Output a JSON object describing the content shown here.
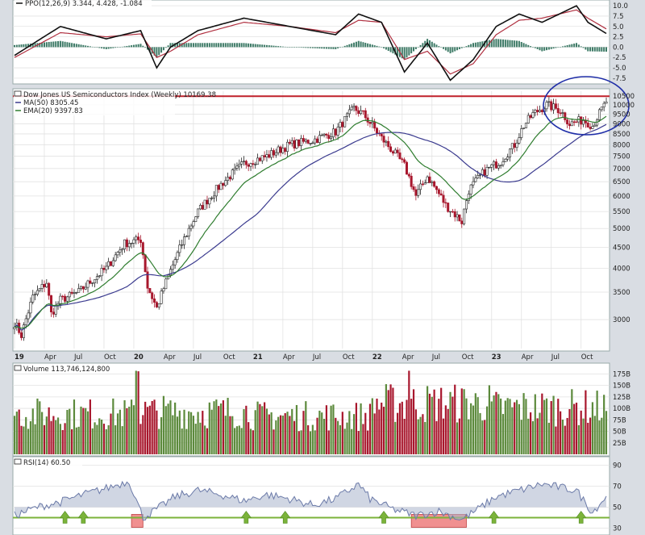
{
  "colors": {
    "up": "#5c8a3c",
    "down": "#a8172d",
    "ma50": "#3b3b8f",
    "ema20": "#2f7d2f",
    "ppo_line": "#111111",
    "ppo_signal": "#b03040",
    "ppo_hist": "#3d7a66",
    "rsi_line": "#6b7aa8",
    "rsi_green": "#7bb33a",
    "rsi_red": "#f09090",
    "circle": "#1f2ea8",
    "resistance": "#c0202a",
    "panel_bg": "#ffffff",
    "grid": "#e2e2e2"
  },
  "chart_data": [
    {
      "type": "line",
      "panel": "ppo",
      "legend_text": "PPO(12,26,9) 3.344, 4.428, -1.084",
      "y_ticks": [
        "10.0",
        "7.5",
        "5.0",
        "2.5",
        "0.0",
        "-2.5",
        "-5.0",
        "-7.5"
      ],
      "ylim": [
        -8.5,
        11
      ],
      "x_weeks": [
        0,
        20,
        40,
        55,
        62,
        68,
        80,
        100,
        120,
        140,
        150,
        160,
        170,
        180,
        190,
        200,
        210,
        220,
        230,
        245,
        250,
        258
      ],
      "series": [
        {
          "name": "PPO",
          "values": [
            -2,
            5,
            2,
            4,
            -5,
            0,
            4,
            7,
            5,
            3,
            8,
            6,
            -6,
            1,
            -8,
            -3,
            5,
            8,
            6,
            10,
            6,
            3.3
          ]
        },
        {
          "name": "Signal",
          "values": [
            -2.5,
            3.5,
            2.5,
            3.2,
            -2.5,
            -1,
            3,
            6,
            5,
            3.5,
            6.5,
            6,
            -3,
            -1,
            -6.5,
            -4,
            3,
            6.5,
            7,
            9,
            7,
            4.4
          ]
        }
      ]
    },
    {
      "type": "candlestick",
      "panel": "price",
      "title": "Dow Jones US Semiconductors Index (Weekly) 10169.38",
      "legend": [
        "MA(50) 8305.45",
        "EMA(20) 9397.83"
      ],
      "y_ticks": [
        10500,
        10000,
        9500,
        9000,
        8500,
        8000,
        7500,
        7000,
        6500,
        6000,
        5500,
        5000,
        4500,
        4000,
        3500,
        3000
      ],
      "yscale": "log",
      "ylim": [
        2550,
        10800
      ],
      "x_labels": [
        "19",
        "Apr",
        "Jul",
        "Oct",
        "20",
        "Apr",
        "Jul",
        "Oct",
        "21",
        "Apr",
        "Jul",
        "Oct",
        "22",
        "Apr",
        "Jul",
        "Oct",
        "23",
        "Apr",
        "Jul",
        "Oct"
      ],
      "x_label_weeks": [
        0,
        13,
        26,
        39,
        52,
        65,
        78,
        91,
        104,
        117,
        130,
        143,
        156,
        169,
        182,
        195,
        208,
        221,
        234,
        247
      ],
      "bold_labels": [
        "19",
        "20",
        "21",
        "22",
        "23"
      ],
      "close_anchor_weeks": [
        0,
        3,
        8,
        14,
        16,
        20,
        28,
        40,
        48,
        55,
        58,
        62,
        70,
        80,
        90,
        100,
        110,
        120,
        130,
        140,
        148,
        152,
        160,
        170,
        175,
        180,
        188,
        195,
        198,
        205,
        212,
        218,
        222,
        226,
        232,
        238,
        242,
        248,
        252,
        258
      ],
      "close_anchors": [
        2950,
        2750,
        3400,
        3700,
        3100,
        3350,
        3500,
        4000,
        4600,
        4700,
        3600,
        3200,
        4200,
        5500,
        6400,
        7200,
        7500,
        8000,
        8200,
        8600,
        9800,
        9500,
        8300,
        7100,
        6000,
        6700,
        5700,
        5200,
        6200,
        6900,
        7300,
        8000,
        8900,
        9500,
        10000,
        9700,
        9000,
        9200,
        8900,
        10169
      ],
      "resistance": 10500
    },
    {
      "type": "bar",
      "panel": "volume",
      "title": "Volume 113,746,124,800",
      "y_ticks": [
        "175B",
        "150B",
        "125B",
        "100B",
        "75B",
        "50B",
        "25B"
      ],
      "ylim": [
        0,
        195
      ],
      "avg_values_by_year": [
        {
          "year": "19",
          "avg": 95
        },
        {
          "year": "20",
          "avg": 100
        },
        {
          "year": "21",
          "avg": 90
        },
        {
          "year": "22",
          "avg": 120
        },
        {
          "year": "23",
          "avg": 110
        }
      ]
    },
    {
      "type": "line",
      "panel": "rsi",
      "title": "RSI(14) 60.50",
      "y_ticks": [
        "90",
        "70",
        "50",
        "30"
      ],
      "ylim": [
        25,
        95
      ],
      "x_weeks": [
        0,
        10,
        20,
        30,
        40,
        50,
        56,
        60,
        70,
        80,
        90,
        100,
        110,
        120,
        130,
        140,
        150,
        155,
        165,
        175,
        185,
        195,
        200,
        210,
        220,
        230,
        240,
        245,
        252,
        258
      ],
      "values": [
        42,
        50,
        55,
        62,
        68,
        75,
        40,
        45,
        60,
        66,
        62,
        56,
        62,
        58,
        52,
        58,
        72,
        58,
        48,
        42,
        46,
        38,
        45,
        60,
        66,
        72,
        68,
        66,
        45,
        60.5
      ],
      "green_line": 40,
      "oversold_zones": [
        [
          51,
          56
        ],
        [
          173,
          197
        ]
      ],
      "buy_arrows_weeks": [
        22,
        30,
        101,
        118,
        161,
        209,
        247
      ]
    }
  ]
}
